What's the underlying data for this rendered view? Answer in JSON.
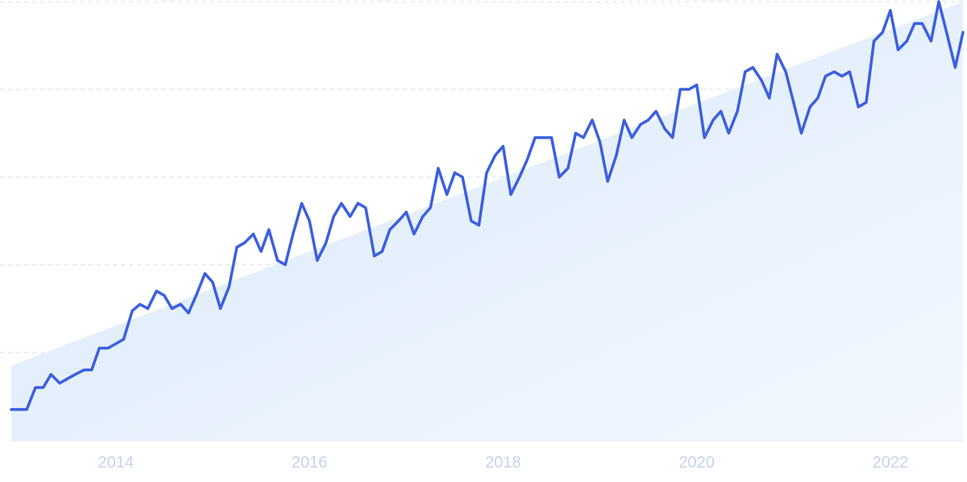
{
  "chart_data": {
    "type": "line",
    "title": "",
    "xlabel": "",
    "ylabel": "",
    "x_ticks": [
      "2014",
      "2016",
      "2018",
      "2020",
      "2022"
    ],
    "x_range": [
      2012.92,
      2022.75
    ],
    "ylim": [
      0,
      100
    ],
    "y_gridlines": [
      20,
      40,
      60,
      80,
      100
    ],
    "grid": true,
    "y_tick_labels_visible": false,
    "legend": "none",
    "colors": {
      "line": "#3B5FE0",
      "trend_fill": "#DCEAFB",
      "grid": "#D5DDEA",
      "axis": "#E6ECF5",
      "tick_text": "#C6D3EA"
    },
    "trend": {
      "start": [
        2012.92,
        17
      ],
      "end": [
        2022.75,
        100
      ]
    },
    "series": [
      {
        "name": "",
        "values": [
          [
            2012.92,
            7
          ],
          [
            2013.08,
            7
          ],
          [
            2013.17,
            12
          ],
          [
            2013.25,
            12
          ],
          [
            2013.33,
            15
          ],
          [
            2013.42,
            13
          ],
          [
            2013.5,
            14
          ],
          [
            2013.58,
            15
          ],
          [
            2013.67,
            16
          ],
          [
            2013.75,
            16
          ],
          [
            2013.83,
            21
          ],
          [
            2013.92,
            21
          ],
          [
            2014.0,
            22
          ],
          [
            2014.08,
            23
          ],
          [
            2014.17,
            29.5
          ],
          [
            2014.25,
            31
          ],
          [
            2014.33,
            30
          ],
          [
            2014.42,
            34
          ],
          [
            2014.5,
            33
          ],
          [
            2014.58,
            30
          ],
          [
            2014.67,
            31
          ],
          [
            2014.75,
            29
          ],
          [
            2014.83,
            33
          ],
          [
            2014.92,
            38
          ],
          [
            2015.0,
            36
          ],
          [
            2015.08,
            30
          ],
          [
            2015.17,
            35
          ],
          [
            2015.25,
            44
          ],
          [
            2015.33,
            45
          ],
          [
            2015.42,
            47
          ],
          [
            2015.5,
            43
          ],
          [
            2015.58,
            48
          ],
          [
            2015.67,
            41
          ],
          [
            2015.75,
            40
          ],
          [
            2015.83,
            47
          ],
          [
            2015.92,
            54
          ],
          [
            2016.0,
            50
          ],
          [
            2016.08,
            41
          ],
          [
            2016.17,
            45
          ],
          [
            2016.25,
            51
          ],
          [
            2016.33,
            54
          ],
          [
            2016.42,
            51
          ],
          [
            2016.5,
            54
          ],
          [
            2016.58,
            53
          ],
          [
            2016.67,
            42
          ],
          [
            2016.75,
            43
          ],
          [
            2016.83,
            48
          ],
          [
            2016.92,
            50
          ],
          [
            2017.0,
            52
          ],
          [
            2017.08,
            47
          ],
          [
            2017.17,
            51
          ],
          [
            2017.25,
            53
          ],
          [
            2017.33,
            62
          ],
          [
            2017.42,
            56
          ],
          [
            2017.5,
            61
          ],
          [
            2017.58,
            60
          ],
          [
            2017.67,
            50
          ],
          [
            2017.75,
            49
          ],
          [
            2017.83,
            61
          ],
          [
            2017.92,
            65
          ],
          [
            2018.0,
            67
          ],
          [
            2018.08,
            56
          ],
          [
            2018.17,
            60
          ],
          [
            2018.25,
            64
          ],
          [
            2018.33,
            69
          ],
          [
            2018.42,
            69
          ],
          [
            2018.5,
            69
          ],
          [
            2018.58,
            60
          ],
          [
            2018.67,
            62
          ],
          [
            2018.75,
            70
          ],
          [
            2018.83,
            69
          ],
          [
            2018.92,
            73
          ],
          [
            2019.0,
            68
          ],
          [
            2019.08,
            59
          ],
          [
            2019.17,
            65
          ],
          [
            2019.25,
            73
          ],
          [
            2019.33,
            69
          ],
          [
            2019.42,
            72
          ],
          [
            2019.5,
            73
          ],
          [
            2019.58,
            75
          ],
          [
            2019.67,
            71
          ],
          [
            2019.75,
            69
          ],
          [
            2019.83,
            80
          ],
          [
            2019.92,
            80
          ],
          [
            2020.0,
            81
          ],
          [
            2020.08,
            69
          ],
          [
            2020.17,
            73
          ],
          [
            2020.25,
            75
          ],
          [
            2020.33,
            70
          ],
          [
            2020.42,
            75
          ],
          [
            2020.5,
            84
          ],
          [
            2020.58,
            85
          ],
          [
            2020.67,
            82
          ],
          [
            2020.75,
            78
          ],
          [
            2020.83,
            88
          ],
          [
            2020.92,
            84
          ],
          [
            2021.0,
            77
          ],
          [
            2021.08,
            70
          ],
          [
            2021.17,
            76
          ],
          [
            2021.25,
            78
          ],
          [
            2021.33,
            83
          ],
          [
            2021.42,
            84
          ],
          [
            2021.5,
            83
          ],
          [
            2021.58,
            84
          ],
          [
            2021.67,
            76
          ],
          [
            2021.75,
            77
          ],
          [
            2021.83,
            91
          ],
          [
            2021.92,
            93
          ],
          [
            2022.0,
            98
          ],
          [
            2022.08,
            89
          ],
          [
            2022.17,
            91
          ],
          [
            2022.25,
            95
          ],
          [
            2022.33,
            95
          ],
          [
            2022.42,
            91
          ],
          [
            2022.5,
            100
          ],
          [
            2022.58,
            93
          ],
          [
            2022.67,
            85
          ],
          [
            2022.75,
            93
          ]
        ]
      }
    ]
  }
}
